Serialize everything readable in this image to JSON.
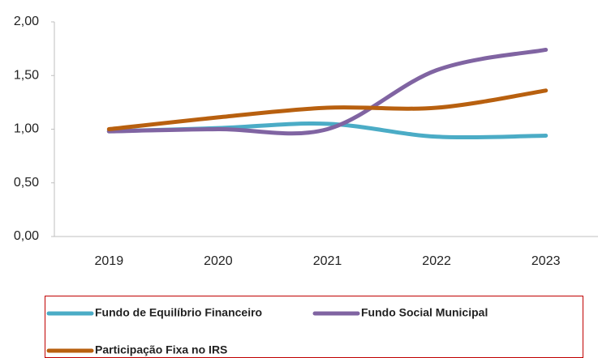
{
  "chart_data": {
    "type": "line",
    "categories": [
      "2019",
      "2020",
      "2021",
      "2022",
      "2023"
    ],
    "series": [
      {
        "name": "Fundo de Equilíbrio Financeiro",
        "color": "#4bacc6",
        "values": [
          0.98,
          1.01,
          1.05,
          0.93,
          0.94
        ]
      },
      {
        "name": "Fundo Social Municipal",
        "color": "#8064a2",
        "values": [
          0.98,
          1.0,
          1.0,
          1.55,
          1.74
        ]
      },
      {
        "name": "Participação Fixa no IRS",
        "color": "#b8600f",
        "values": [
          1.0,
          1.11,
          1.2,
          1.2,
          1.36
        ]
      }
    ],
    "ylim": [
      0,
      2
    ],
    "yticks": [
      {
        "value": 0,
        "label": "0,00"
      },
      {
        "value": 0.5,
        "label": "0,50"
      },
      {
        "value": 1,
        "label": "1,00"
      },
      {
        "value": 1.5,
        "label": "1,50"
      },
      {
        "value": 2,
        "label": "2,00"
      }
    ],
    "grid": false,
    "legend": "bottom"
  }
}
